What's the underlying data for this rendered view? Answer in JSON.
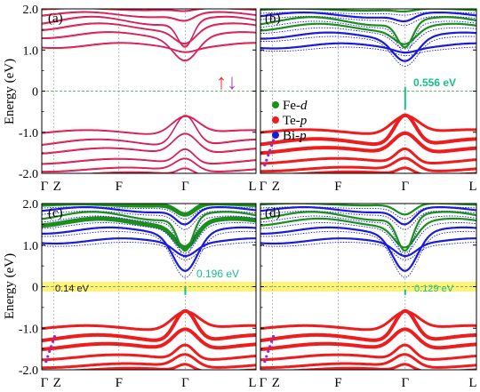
{
  "figure": {
    "ylabel": "Energy (eV)",
    "yticks": [
      "2.0",
      "1.0",
      "0",
      "-1.0",
      "-2.0"
    ],
    "xticks": [
      "Γ",
      "Z",
      "F",
      "Γ",
      "L"
    ],
    "colors": {
      "up": "#ff2a2a",
      "down": "#c01a7a",
      "fe": "#1a8f1a",
      "te": "#ee1c1c",
      "bi": "#1a1ad8",
      "gap": "#1abf8a",
      "fermi": "#3aa53a",
      "yellow": "#fff27a",
      "panel_gap_label": "#18c08a"
    },
    "arrows": {
      "up": "↑",
      "down": "↓"
    }
  },
  "chart_data": [
    {
      "panel": "(a)",
      "type": "line",
      "ylabel": "Energy (eV)",
      "ylim": [
        -2.0,
        2.0
      ],
      "x_kpoints": [
        "Γ",
        "Z",
        "F",
        "Γ",
        "L"
      ],
      "series": [
        {
          "spin": "up",
          "color": "#ff2a2a"
        },
        {
          "spin": "down",
          "color": "#c01a7a"
        }
      ],
      "gap_label": "",
      "fermi_level": 0
    },
    {
      "panel": "(b)",
      "type": "scatter",
      "ylim": [
        -2.0,
        2.0
      ],
      "x_kpoints": [
        "Γ",
        "Z",
        "F",
        "Γ",
        "L"
      ],
      "legend": [
        {
          "label_main": "Fe-",
          "label_orb": "d",
          "color": "#1a8f1a"
        },
        {
          "label_main": "Te-",
          "label_orb": "p",
          "color": "#ee1c1c"
        },
        {
          "label_main": "Bi-",
          "label_orb": "p",
          "color": "#1a1ad8"
        }
      ],
      "legend_placement": "center",
      "gap_label": "0.556 eV",
      "gap_at": "Γ",
      "gap_ev": 0.556
    },
    {
      "panel": "(c)",
      "type": "scatter",
      "ylabel": "Energy (eV)",
      "ylim": [
        -2.0,
        2.0
      ],
      "x_kpoints": [
        "Γ",
        "Z",
        "F",
        "Γ",
        "L"
      ],
      "gap_label": "0.196 eV",
      "gap_ev": 0.196,
      "side_label": "0.14 eV",
      "side_ev": 0.14
    },
    {
      "panel": "(d)",
      "type": "scatter",
      "ylim": [
        -2.0,
        2.0
      ],
      "x_kpoints": [
        "Γ",
        "Z",
        "F",
        "Γ",
        "L"
      ],
      "gap_label": "0.129 eV",
      "gap_ev": 0.129
    }
  ]
}
